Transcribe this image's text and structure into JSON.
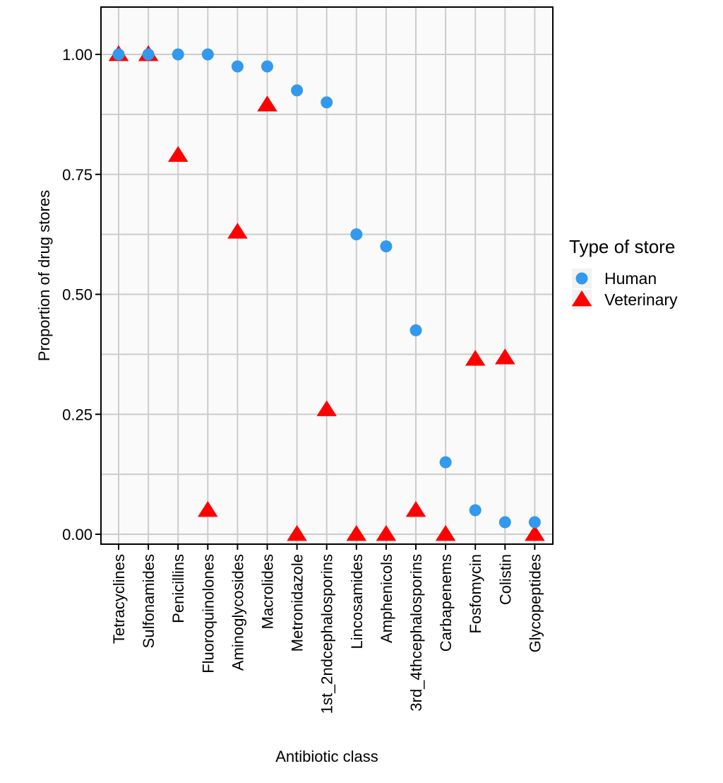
{
  "chart_data": {
    "type": "scatter",
    "xlabel": "Antibiotic class",
    "ylabel": "Proportion of drug stores",
    "categories": [
      "Tetracyclines",
      "Sulfonamides",
      "Penicillins",
      "Fluoroquinolones",
      "Aminoglycosides",
      "Macrolides",
      "Metronidazole",
      "1st_2ndcephalosporins",
      "Lincosamides",
      "Amphenicols",
      "3rd_4thcephalosporins",
      "Carbapenems",
      "Fosfomycin",
      "Colistin",
      "Glycopeptides"
    ],
    "ylim": [
      0,
      1.0
    ],
    "y_ticks": [
      "0.00",
      "0.25",
      "0.50",
      "0.75",
      "1.00"
    ],
    "grid": true,
    "legend": {
      "title": "Type of store",
      "position": "right"
    },
    "series": [
      {
        "name": "Human",
        "marker": "circle",
        "color": "#3399EE",
        "values": [
          1.0,
          1.0,
          1.0,
          1.0,
          0.975,
          0.975,
          0.925,
          0.9,
          0.625,
          0.6,
          0.425,
          0.15,
          0.05,
          0.025,
          0.025
        ]
      },
      {
        "name": "Veterinary",
        "marker": "triangle",
        "color": "#FF0000",
        "values": [
          1.0,
          1.0,
          0.79,
          0.05,
          0.63,
          0.895,
          0.0,
          0.26,
          0.0,
          0.0,
          0.05,
          0.0,
          0.365,
          0.368,
          0.0
        ]
      }
    ]
  }
}
